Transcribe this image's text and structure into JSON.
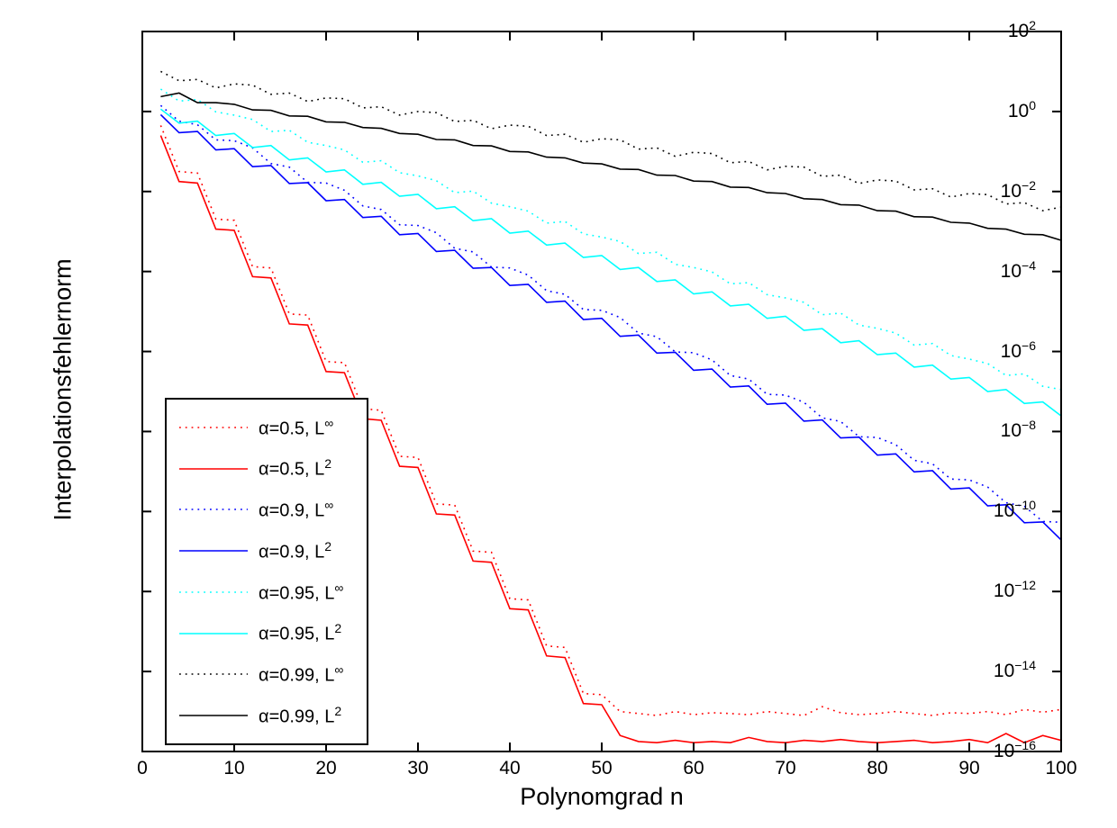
{
  "figure": {
    "xlabel": "Polynomgrad n",
    "ylabel": "Interpolationsfehlernorm",
    "background_color": "#ffffff",
    "axis_color": "#000000"
  },
  "chart_data": {
    "type": "line",
    "title": "",
    "xlabel": "Polynomgrad n",
    "ylabel": "Interpolationsfehlernorm",
    "grid": false,
    "legend_position": "lower-left",
    "x_axis": {
      "scale": "linear",
      "min": 0,
      "max": 100,
      "ticks": [
        0,
        10,
        20,
        30,
        40,
        50,
        60,
        70,
        80,
        90,
        100
      ]
    },
    "y_axis": {
      "scale": "log10",
      "max_exponent": 2,
      "min_exponent": -16,
      "tick_exponents": [
        2,
        0,
        -2,
        -4,
        -6,
        -8,
        -10,
        -12,
        -14,
        -16
      ]
    },
    "x": [
      2,
      4,
      6,
      8,
      10,
      12,
      14,
      16,
      18,
      20,
      22,
      24,
      26,
      28,
      30,
      32,
      34,
      36,
      38,
      40,
      42,
      44,
      46,
      48,
      50,
      52,
      54,
      56,
      58,
      60,
      62,
      64,
      66,
      68,
      70,
      72,
      74,
      76,
      78,
      80,
      82,
      84,
      86,
      88,
      90,
      92,
      94,
      96,
      98,
      100
    ],
    "series": [
      {
        "id": "alpha05-Linf",
        "name": "α=0.5, L∞",
        "legend_label": "α=0.5, L",
        "legend_sup": "∞",
        "color": "#ff0000",
        "line_style": "dotted",
        "log10_y": [
          -0.35,
          -1.5,
          -1.54,
          -2.69,
          -2.72,
          -3.88,
          -3.91,
          -5.06,
          -5.09,
          -6.25,
          -6.28,
          -7.43,
          -7.47,
          -8.62,
          -8.65,
          -9.81,
          -9.84,
          -10.99,
          -11.02,
          -12.18,
          -12.21,
          -13.36,
          -13.4,
          -14.55,
          -14.58,
          -15.0,
          -15.05,
          -15.1,
          -15.0,
          -15.08,
          -15.03,
          -15.05,
          -15.08,
          -15.0,
          -15.05,
          -15.1,
          -14.88,
          -15.03,
          -15.08,
          -15.05,
          -15.0,
          -15.05,
          -15.1,
          -15.03,
          -15.05,
          -15.0,
          -15.08,
          -14.95,
          -15.02,
          -14.95
        ]
      },
      {
        "id": "alpha05-L2",
        "name": "α=0.5, L2",
        "legend_label": "α=0.5, L",
        "legend_sup": "2",
        "color": "#ff0000",
        "line_style": "solid",
        "log10_y": [
          -0.6,
          -1.75,
          -1.79,
          -2.94,
          -2.97,
          -4.13,
          -4.16,
          -5.31,
          -5.34,
          -6.5,
          -6.53,
          -7.68,
          -7.72,
          -8.87,
          -8.9,
          -10.06,
          -10.09,
          -11.24,
          -11.27,
          -12.43,
          -12.46,
          -13.61,
          -13.65,
          -14.8,
          -14.83,
          -15.6,
          -15.75,
          -15.78,
          -15.72,
          -15.78,
          -15.75,
          -15.78,
          -15.65,
          -15.75,
          -15.78,
          -15.72,
          -15.75,
          -15.7,
          -15.75,
          -15.78,
          -15.75,
          -15.72,
          -15.78,
          -15.75,
          -15.7,
          -15.78,
          -15.55,
          -15.78,
          -15.6,
          -15.72
        ]
      },
      {
        "id": "alpha09-Linf",
        "name": "α=0.9, L∞",
        "legend_label": "α=0.9, L",
        "legend_sup": "∞",
        "color": "#0000ff",
        "line_style": "dotted",
        "log10_y": [
          0.15,
          -0.24,
          -0.33,
          -0.71,
          -0.73,
          -0.91,
          -1.3,
          -1.39,
          -1.77,
          -1.79,
          -1.97,
          -2.36,
          -2.45,
          -2.83,
          -2.85,
          -3.03,
          -3.42,
          -3.51,
          -3.89,
          -3.91,
          -4.09,
          -4.48,
          -4.57,
          -4.95,
          -4.97,
          -5.15,
          -5.54,
          -5.63,
          -6.01,
          -6.03,
          -6.21,
          -6.6,
          -6.69,
          -7.07,
          -7.09,
          -7.27,
          -7.66,
          -7.75,
          -8.13,
          -8.15,
          -8.33,
          -8.72,
          -8.81,
          -9.19,
          -9.21,
          -9.39,
          -9.78,
          -9.87,
          -10.25,
          -10.27
        ]
      },
      {
        "id": "alpha09-L2",
        "name": "α=0.9, L2",
        "legend_label": "α=0.9, L",
        "legend_sup": "2",
        "color": "#0000ff",
        "line_style": "solid",
        "log10_y": [
          -0.08,
          -0.53,
          -0.5,
          -0.96,
          -0.93,
          -1.38,
          -1.35,
          -1.8,
          -1.78,
          -2.23,
          -2.2,
          -2.65,
          -2.62,
          -3.08,
          -3.05,
          -3.5,
          -3.47,
          -3.92,
          -3.9,
          -4.35,
          -4.32,
          -4.77,
          -4.74,
          -5.2,
          -5.17,
          -5.62,
          -5.59,
          -6.04,
          -6.02,
          -6.47,
          -6.44,
          -6.89,
          -6.86,
          -7.32,
          -7.29,
          -7.74,
          -7.71,
          -8.16,
          -8.14,
          -8.59,
          -8.56,
          -9.01,
          -8.98,
          -9.44,
          -9.41,
          -9.86,
          -9.83,
          -10.28,
          -10.26,
          -10.71
        ]
      },
      {
        "id": "alpha095-Linf",
        "name": "α=0.95, L∞",
        "legend_label": "α=0.95, L",
        "legend_sup": "∞",
        "color": "#00ffff",
        "line_style": "dotted",
        "log10_y": [
          0.56,
          0.26,
          0.3,
          -0.01,
          -0.09,
          -0.2,
          -0.5,
          -0.47,
          -0.77,
          -0.85,
          -0.96,
          -1.27,
          -1.23,
          -1.53,
          -1.61,
          -1.73,
          -2.03,
          -1.99,
          -2.29,
          -2.38,
          -2.49,
          -2.79,
          -2.75,
          -3.06,
          -3.14,
          -3.25,
          -3.55,
          -3.52,
          -3.82,
          -3.9,
          -4.01,
          -4.31,
          -4.28,
          -4.58,
          -4.66,
          -4.77,
          -5.08,
          -5.04,
          -5.34,
          -5.42,
          -5.54,
          -5.84,
          -5.8,
          -6.1,
          -6.19,
          -6.3,
          -6.6,
          -6.56,
          -6.87,
          -6.95
        ]
      },
      {
        "id": "alpha095-L2",
        "name": "α=0.95, L2",
        "legend_label": "α=0.95, L",
        "legend_sup": "2",
        "color": "#00ffff",
        "line_style": "solid",
        "log10_y": [
          0.06,
          -0.29,
          -0.24,
          -0.6,
          -0.55,
          -0.9,
          -0.85,
          -1.21,
          -1.16,
          -1.51,
          -1.46,
          -1.82,
          -1.77,
          -2.12,
          -2.07,
          -2.43,
          -2.38,
          -2.73,
          -2.68,
          -3.04,
          -2.99,
          -3.34,
          -3.29,
          -3.65,
          -3.6,
          -3.95,
          -3.9,
          -4.25,
          -4.21,
          -4.56,
          -4.51,
          -4.86,
          -4.82,
          -5.17,
          -5.12,
          -5.47,
          -5.43,
          -5.78,
          -5.73,
          -6.08,
          -6.04,
          -6.39,
          -6.34,
          -6.69,
          -6.65,
          -7.0,
          -6.95,
          -7.3,
          -7.26,
          -7.61
        ]
      },
      {
        "id": "alpha099-Linf",
        "name": "α=0.99, L∞",
        "legend_label": "α=0.99, L",
        "legend_sup": "∞",
        "color": "#000000",
        "line_style": "dotted",
        "log10_y": [
          1.0,
          0.77,
          0.8,
          0.59,
          0.69,
          0.66,
          0.43,
          0.46,
          0.25,
          0.34,
          0.32,
          0.09,
          0.12,
          -0.09,
          0.0,
          -0.03,
          -0.25,
          -0.22,
          -0.43,
          -0.34,
          -0.37,
          -0.6,
          -0.57,
          -0.77,
          -0.68,
          -0.71,
          -0.94,
          -0.91,
          -1.12,
          -1.02,
          -1.05,
          -1.28,
          -1.25,
          -1.46,
          -1.37,
          -1.39,
          -1.62,
          -1.59,
          -1.8,
          -1.71,
          -1.74,
          -1.96,
          -1.93,
          -2.14,
          -2.05,
          -2.08,
          -2.31,
          -2.28,
          -2.48,
          -2.39
        ]
      },
      {
        "id": "alpha099-L2",
        "name": "α=0.99, L2",
        "legend_label": "α=0.99, L",
        "legend_sup": "2",
        "color": "#000000",
        "line_style": "solid",
        "log10_y": [
          0.37,
          0.46,
          0.22,
          0.22,
          0.18,
          0.04,
          0.03,
          -0.11,
          -0.12,
          -0.26,
          -0.27,
          -0.4,
          -0.42,
          -0.55,
          -0.57,
          -0.7,
          -0.71,
          -0.85,
          -0.86,
          -1.0,
          -1.01,
          -1.14,
          -1.16,
          -1.29,
          -1.31,
          -1.44,
          -1.45,
          -1.59,
          -1.6,
          -1.74,
          -1.75,
          -1.89,
          -1.9,
          -2.03,
          -2.05,
          -2.18,
          -2.2,
          -2.33,
          -2.34,
          -2.48,
          -2.49,
          -2.63,
          -2.64,
          -2.77,
          -2.79,
          -2.92,
          -2.94,
          -3.07,
          -3.08,
          -3.22
        ]
      }
    ]
  }
}
